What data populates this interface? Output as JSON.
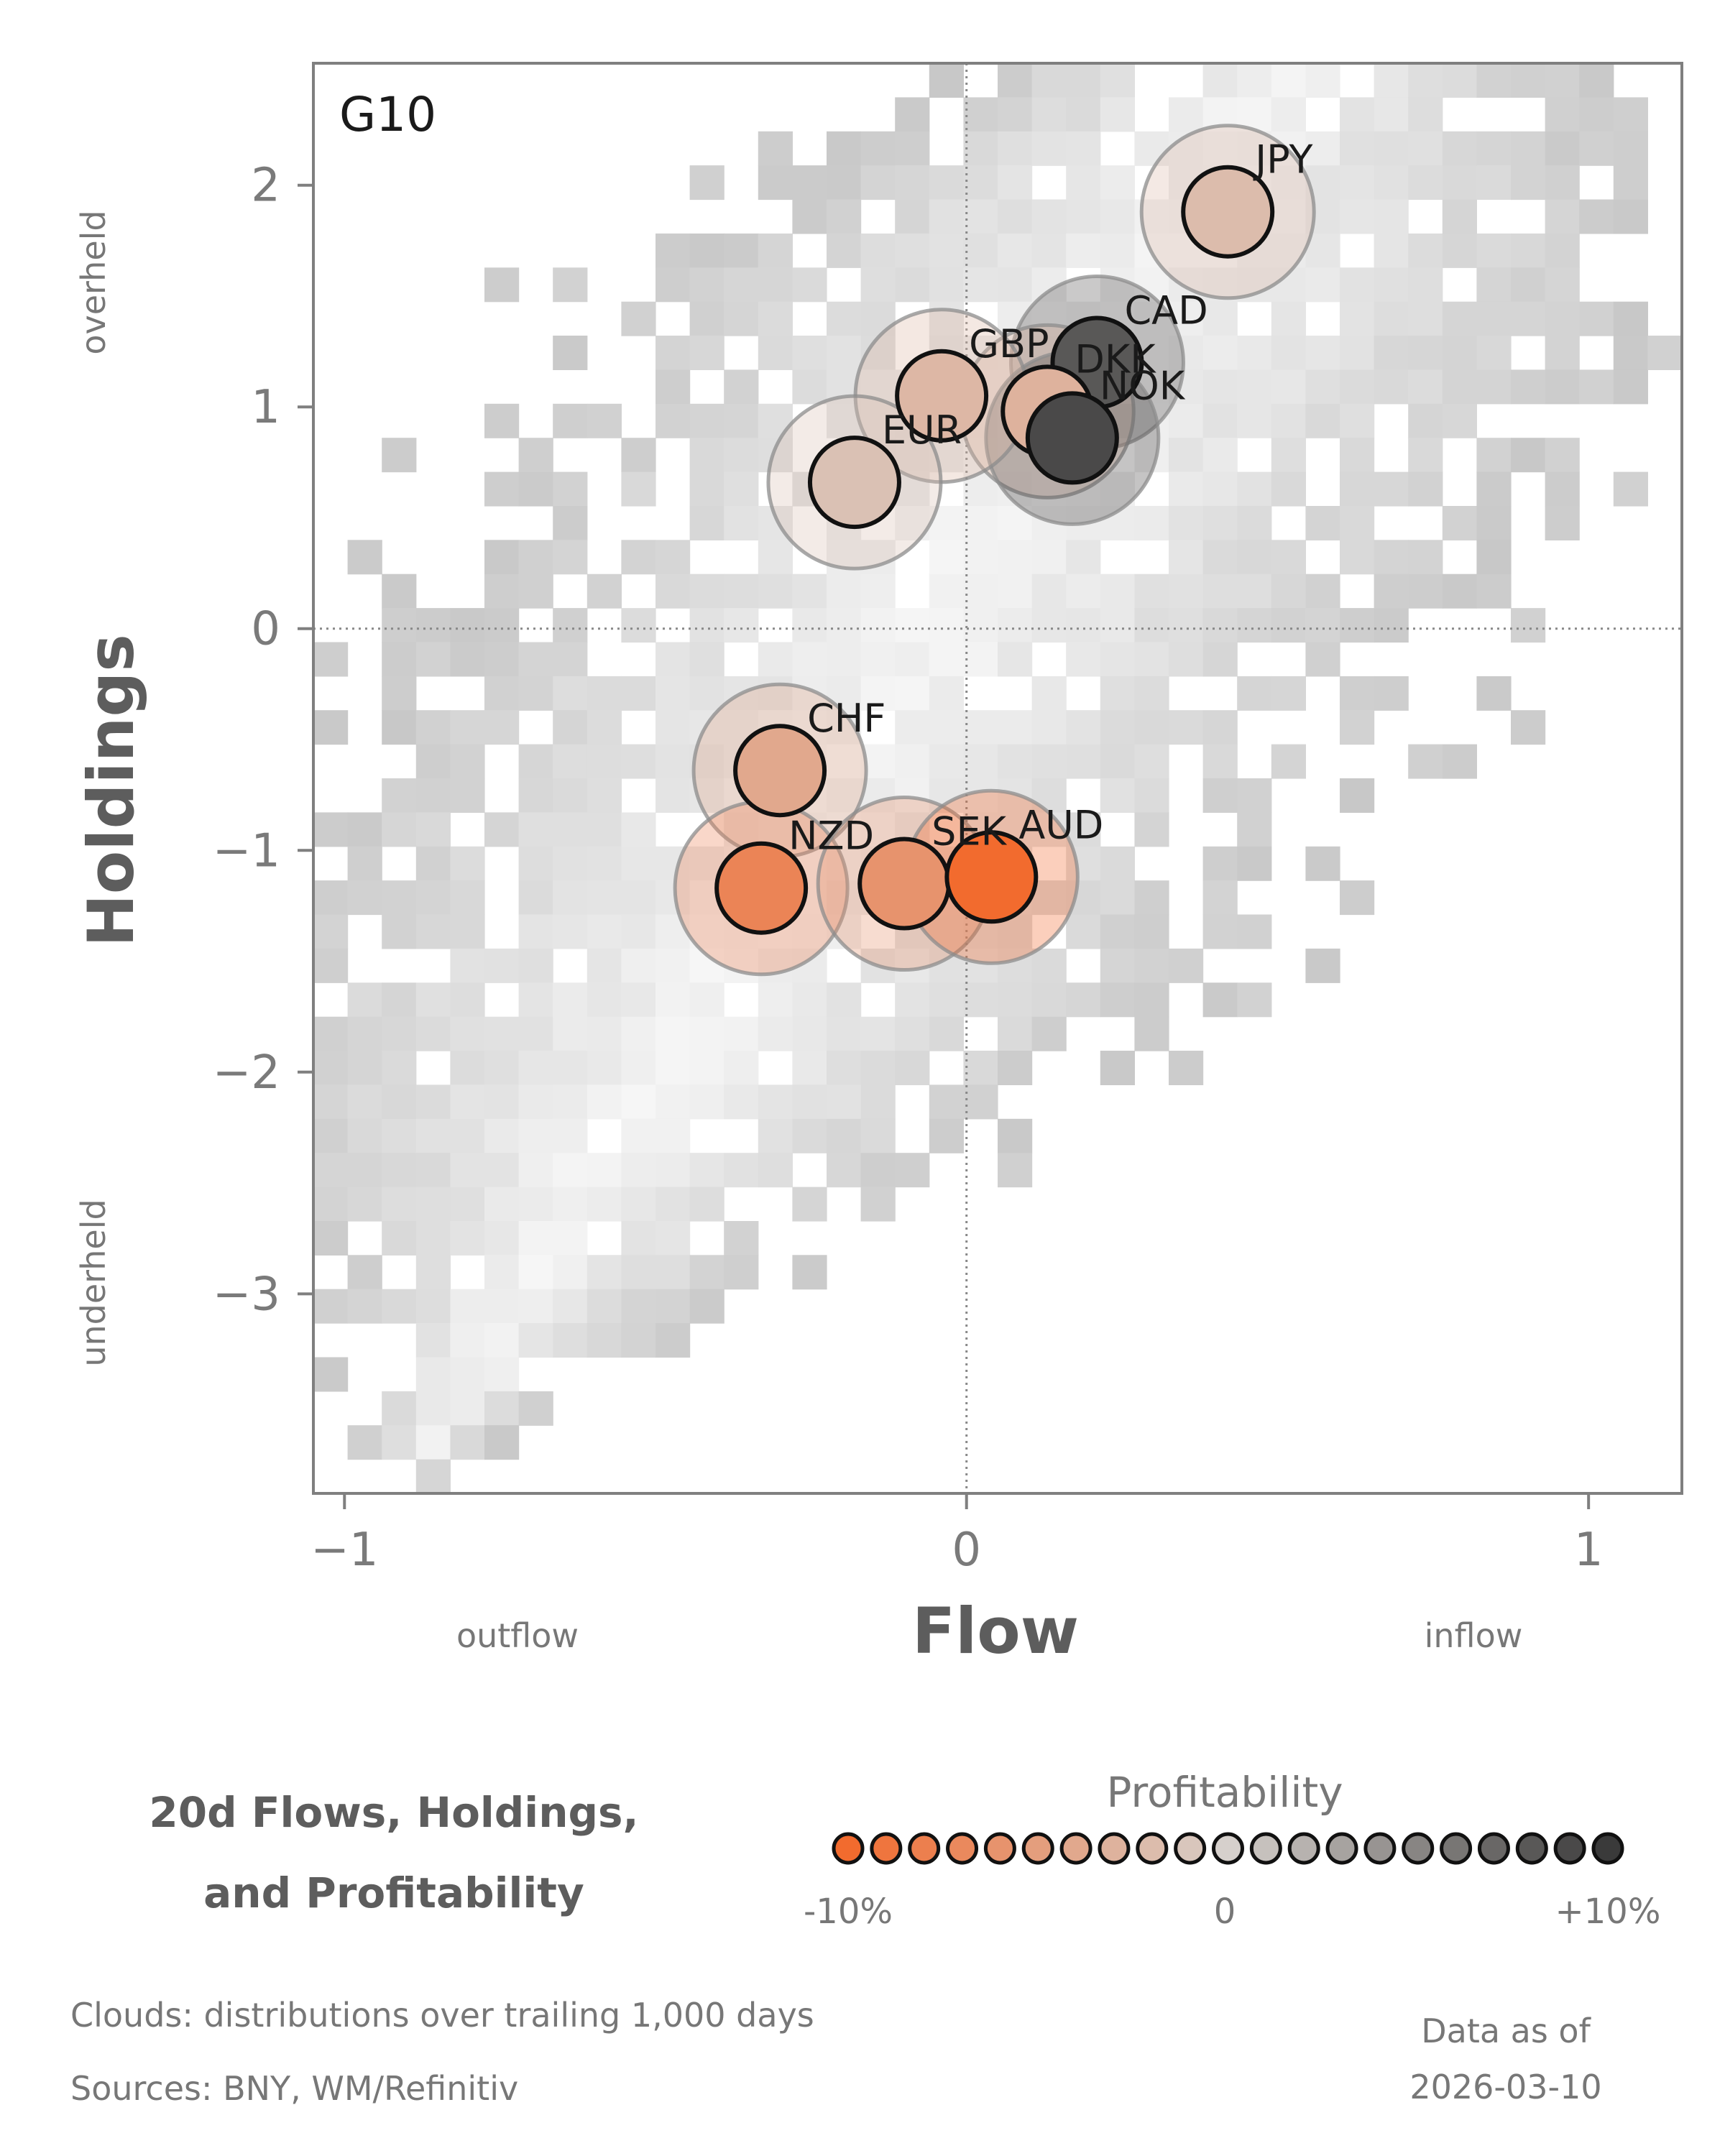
{
  "chart_data": {
    "type": "scatter",
    "panel_label": "G10",
    "xlabel": "Flow",
    "ylabel": "Holdings",
    "xlim": [
      -1.05,
      1.15
    ],
    "ylim": [
      -3.9,
      2.55
    ],
    "x_ticks": [
      {
        "value": -1,
        "label": "−1"
      },
      {
        "value": 0,
        "label": "0"
      },
      {
        "value": 1,
        "label": "1"
      }
    ],
    "y_ticks": [
      {
        "value": 2,
        "label": "2"
      },
      {
        "value": 1,
        "label": "1"
      },
      {
        "value": 0,
        "label": "0"
      },
      {
        "value": -1,
        "label": "−1"
      },
      {
        "value": -2,
        "label": "−2"
      },
      {
        "value": -3,
        "label": "−3"
      }
    ],
    "x_direction_labels": {
      "low": "outflow",
      "high": "inflow"
    },
    "y_direction_labels": {
      "high": "overheld",
      "low": "underheld"
    },
    "points": [
      {
        "label": "JPY",
        "x": 0.42,
        "y": 1.88,
        "profitability": -2
      },
      {
        "label": "CAD",
        "x": 0.21,
        "y": 1.2,
        "profitability": 8
      },
      {
        "label": "DKK",
        "x": 0.13,
        "y": 0.98,
        "profitability": -3
      },
      {
        "label": "NOK",
        "x": 0.17,
        "y": 0.86,
        "profitability": 9
      },
      {
        "label": "GBP",
        "x": -0.04,
        "y": 1.05,
        "profitability": -2.5
      },
      {
        "label": "EUR",
        "x": -0.18,
        "y": 0.66,
        "profitability": -1.5
      },
      {
        "label": "CHF",
        "x": -0.3,
        "y": -0.64,
        "profitability": -4
      },
      {
        "label": "NZD",
        "x": -0.33,
        "y": -1.17,
        "profitability": -7.5
      },
      {
        "label": "SEK",
        "x": -0.1,
        "y": -1.15,
        "profitability": -6
      },
      {
        "label": "AUD",
        "x": 0.04,
        "y": -1.12,
        "profitability": -10
      }
    ],
    "colorbar": {
      "title": "Profitability",
      "min_label": "-10%",
      "mid_label": "0",
      "max_label": "+10%",
      "steps": 21,
      "low_color": "#f26b2e",
      "mid_color": "#d6d0cc",
      "high_color": "#3a3a3a"
    },
    "background": "Clouds: distributions over trailing 1,000 days"
  },
  "legend_title": [
    "20d Flows, Holdings,",
    "and Profitability"
  ],
  "footer": {
    "clouds_note": "Clouds:  distributions over trailing 1,000 days",
    "sources": "Sources:  BNY, WM/Refinitiv",
    "data_as_of_label": "Data as of",
    "data_as_of_date": "2026-03-10"
  }
}
